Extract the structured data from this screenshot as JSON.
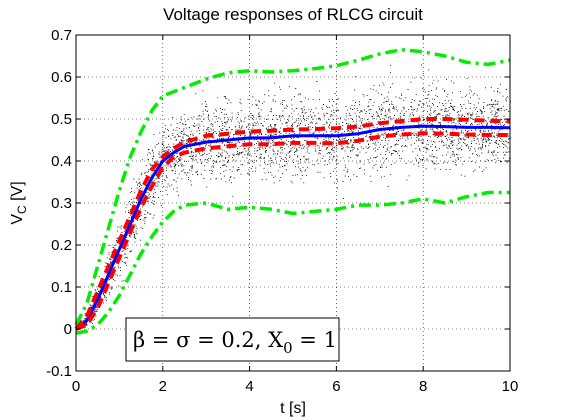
{
  "chart_data": {
    "type": "line",
    "title": "Voltage responses of RLCG circuit",
    "xlabel": "t [s]",
    "ylabel": {
      "main": "V",
      "sub": "C",
      "unit": " [V]"
    },
    "xlim": [
      0,
      10
    ],
    "ylim": [
      -0.1,
      0.7
    ],
    "xticks": [
      0,
      2,
      4,
      6,
      8,
      10
    ],
    "yticks": [
      -0.1,
      0,
      0.1,
      0.2,
      0.3,
      0.4,
      0.5,
      0.6,
      0.7
    ],
    "grid": true,
    "grid_style": "dotted",
    "annotation": {
      "parts": [
        "β = σ = 0.2, X",
        "0",
        " = 1"
      ],
      "placement": "bottom-left"
    },
    "samples": {
      "description_color": "#000000",
      "style": "scattered dots"
    },
    "series": [
      {
        "role": "mean",
        "color": "#0000ff",
        "style": "solid",
        "x": [
          0,
          0.25,
          0.5,
          0.75,
          1,
          1.25,
          1.5,
          1.75,
          2,
          2.25,
          2.5,
          3,
          3.5,
          4,
          4.5,
          5,
          5.5,
          6,
          6.5,
          7,
          7.5,
          8,
          8.5,
          9,
          9.5,
          10
        ],
        "y": [
          0,
          0.02,
          0.07,
          0.13,
          0.19,
          0.25,
          0.31,
          0.36,
          0.4,
          0.42,
          0.435,
          0.445,
          0.45,
          0.455,
          0.455,
          0.46,
          0.46,
          0.46,
          0.465,
          0.475,
          0.48,
          0.483,
          0.482,
          0.48,
          0.48,
          0.479
        ]
      },
      {
        "role": "mean-plus-std",
        "color": "#ff0000",
        "style": "dashed",
        "x": [
          0,
          0.25,
          0.5,
          0.75,
          1,
          1.25,
          1.5,
          1.75,
          2,
          2.25,
          2.5,
          3,
          3.5,
          4,
          4.5,
          5,
          5.5,
          6,
          6.5,
          7,
          7.5,
          8,
          8.5,
          9,
          9.5,
          10
        ],
        "y": [
          0,
          0.03,
          0.09,
          0.15,
          0.21,
          0.27,
          0.33,
          0.38,
          0.41,
          0.43,
          0.445,
          0.46,
          0.465,
          0.47,
          0.472,
          0.475,
          0.476,
          0.478,
          0.482,
          0.49,
          0.495,
          0.5,
          0.5,
          0.498,
          0.496,
          0.494
        ]
      },
      {
        "role": "mean-minus-std",
        "color": "#ff0000",
        "style": "dashed",
        "x": [
          0,
          0.25,
          0.5,
          0.75,
          1,
          1.25,
          1.5,
          1.75,
          2,
          2.25,
          2.5,
          3,
          3.5,
          4,
          4.5,
          5,
          5.5,
          6,
          6.5,
          7,
          7.5,
          8,
          8.5,
          9,
          9.5,
          10
        ],
        "y": [
          0,
          0.01,
          0.05,
          0.11,
          0.17,
          0.23,
          0.29,
          0.34,
          0.385,
          0.41,
          0.42,
          0.43,
          0.435,
          0.44,
          0.44,
          0.443,
          0.443,
          0.442,
          0.448,
          0.458,
          0.463,
          0.466,
          0.465,
          0.463,
          0.462,
          0.462
        ]
      },
      {
        "role": "upper-bound",
        "color": "#00ee00",
        "style": "dash-dot",
        "x": [
          0,
          0.25,
          0.5,
          0.75,
          1,
          1.25,
          1.5,
          1.75,
          2,
          2.25,
          2.5,
          3,
          3.5,
          4,
          4.5,
          5,
          5.5,
          6,
          6.5,
          7,
          7.5,
          8,
          8.5,
          9,
          9.5,
          10
        ],
        "y": [
          0.01,
          0.06,
          0.15,
          0.24,
          0.33,
          0.41,
          0.47,
          0.52,
          0.555,
          0.565,
          0.575,
          0.595,
          0.61,
          0.615,
          0.612,
          0.615,
          0.62,
          0.627,
          0.64,
          0.655,
          0.665,
          0.66,
          0.65,
          0.635,
          0.63,
          0.64
        ]
      },
      {
        "role": "lower-bound",
        "color": "#00ee00",
        "style": "dash-dot",
        "x": [
          0,
          0.25,
          0.5,
          0.75,
          1,
          1.25,
          1.5,
          1.75,
          2,
          2.25,
          2.5,
          3,
          3.5,
          4,
          4.5,
          5,
          5.5,
          6,
          6.5,
          7,
          7.5,
          8,
          8.5,
          9,
          9.5,
          10
        ],
        "y": [
          -0.01,
          -0.005,
          0.01,
          0.04,
          0.08,
          0.13,
          0.18,
          0.22,
          0.255,
          0.28,
          0.295,
          0.3,
          0.285,
          0.29,
          0.285,
          0.275,
          0.28,
          0.285,
          0.295,
          0.295,
          0.3,
          0.31,
          0.3,
          0.315,
          0.325,
          0.325
        ]
      }
    ]
  }
}
